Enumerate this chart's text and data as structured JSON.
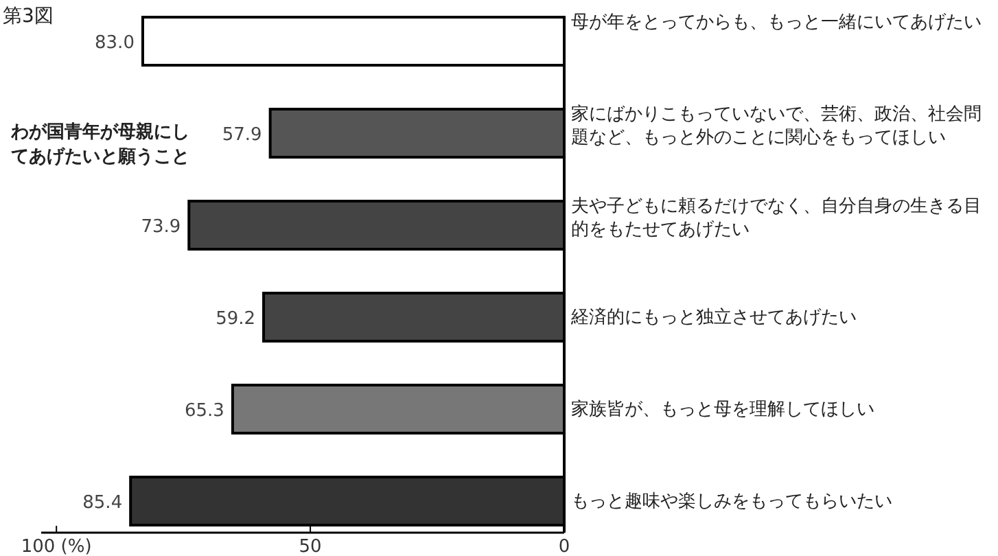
{
  "chart_data": {
    "type": "bar",
    "orientation": "horizontal",
    "title": "第3図",
    "subtitle": "わが国青年が母親にしてあげたいと願うこと",
    "categories": [
      "母が年をとってからも、もっと一緒にいてあげたい",
      "家にばかりこもっていないで、芸術、政治、社会問題など、もっと外のことに関心をもってほしい",
      "夫や子どもに頼るだけでなく、自分自身の生きる目的をもたせてあげたい",
      "経済的にもっと独立させてあげたい",
      "家族皆が、もっと母を理解してほしい",
      "もっと趣味や楽しみをもってもらいたい"
    ],
    "values": [
      83.0,
      57.9,
      73.9,
      59.2,
      65.3,
      85.4
    ],
    "value_labels": [
      "83.0",
      "57.9",
      "73.9",
      "59.2",
      "65.3",
      "85.4"
    ],
    "colors": [
      "#ffffff",
      "#555555",
      "#444444",
      "#444444",
      "#777777",
      "#333333"
    ],
    "xlim": [
      103,
      0
    ],
    "xticks": [
      {
        "value": 100,
        "label": "100 (%)"
      },
      50,
      0
    ],
    "grid": false
  }
}
